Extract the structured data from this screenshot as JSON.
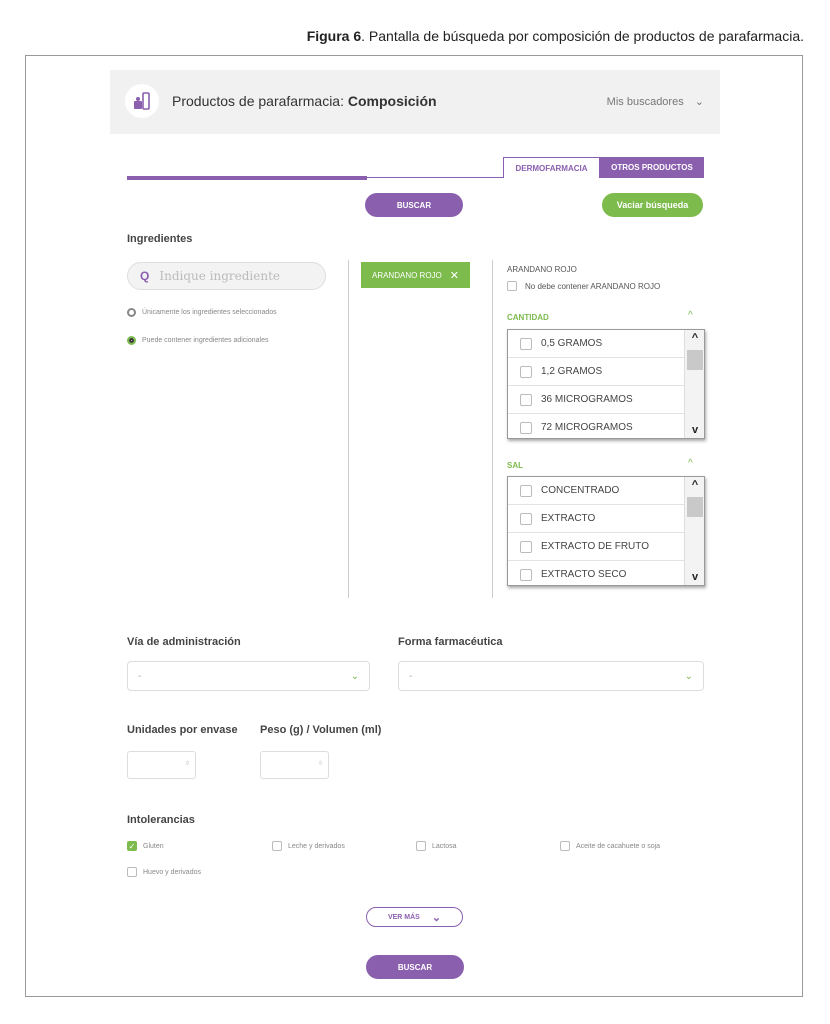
{
  "caption": {
    "figure": "Figura 6",
    "text": ". Pantalla de búsqueda por composición de productos de parafarmacia."
  },
  "header": {
    "title_prefix": "Productos de parafarmacia: ",
    "title_bold": "Composición",
    "menu": "Mis buscadores",
    "logo_icon": "parapharmacy-products-icon"
  },
  "tabs": [
    {
      "label": "DERMOFARMACIA",
      "active": false
    },
    {
      "label": "OTROS PRODUCTOS",
      "active": true
    }
  ],
  "buttons": {
    "search": "BUSCAR",
    "clear": "Vaciar búsqueda",
    "more": "VER MÁS",
    "search_bottom": "BUSCAR"
  },
  "ingredients": {
    "label": "Ingredientes",
    "placeholder": "Indique ingrediente",
    "options": [
      {
        "label": "Únicamente los ingredientes seleccionados",
        "selected": false
      },
      {
        "label": "Puede contener ingredientes adicionales",
        "selected": true
      }
    ],
    "chip": "ARANDANO ROJO"
  },
  "detail": {
    "name": "ARANDANO ROJO",
    "exclude_label": "No debe contener ARANDANO ROJO",
    "cantidad": {
      "label": "CANTIDAD",
      "items": [
        "0,5 GRAMOS",
        "1,2 GRAMOS",
        "36 MICROGRAMOS",
        "72 MICROGRAMOS"
      ]
    },
    "sal": {
      "label": "SAL",
      "items": [
        "CONCENTRADO",
        "EXTRACTO",
        "EXTRACTO DE FRUTO",
        "EXTRACTO SECO"
      ]
    }
  },
  "via": {
    "label": "Vía de administración",
    "value": "-"
  },
  "forma": {
    "label": "Forma farmacéutica",
    "value": "-"
  },
  "unidades": {
    "label": "Unidades por envase"
  },
  "peso": {
    "label": "Peso (g) / Volumen (ml)"
  },
  "intolerancias": {
    "label": "Intolerancias",
    "items": [
      {
        "label": "Gluten",
        "checked": true
      },
      {
        "label": "Leche y derivados",
        "checked": false
      },
      {
        "label": "Lactosa",
        "checked": false
      },
      {
        "label": "Aceite de cacahuete o soja",
        "checked": false
      },
      {
        "label": "Huevo y derivados",
        "checked": false
      }
    ]
  },
  "colors": {
    "purple": "#8a5fae",
    "green": "#7dbb4d"
  }
}
